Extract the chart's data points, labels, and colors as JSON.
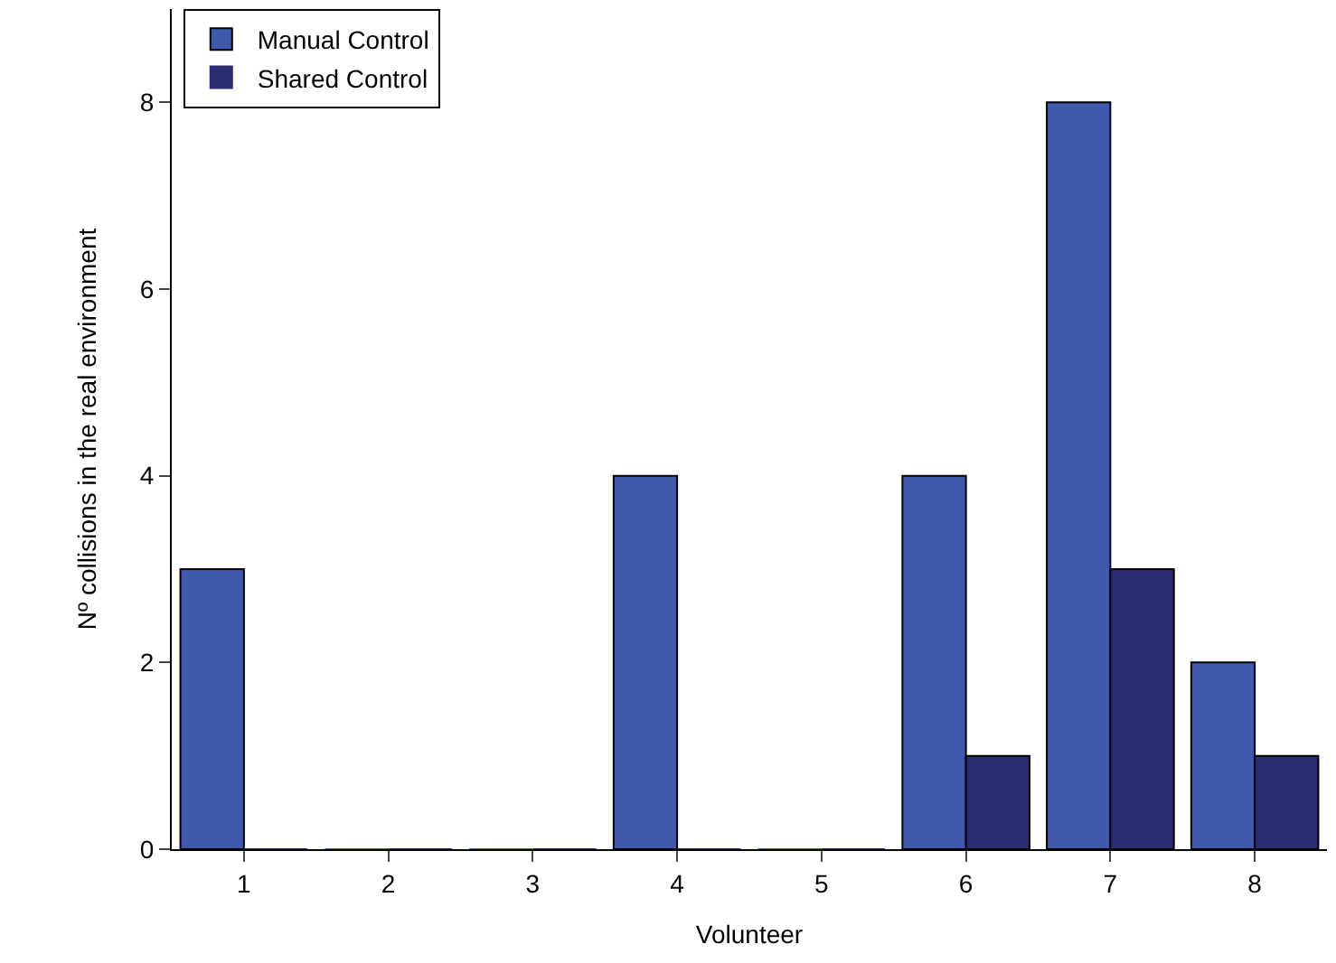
{
  "chart_data": {
    "type": "bar",
    "xlabel": "Volunteer",
    "ylabel": "Nº collisions in the real environment",
    "categories": [
      "1",
      "2",
      "3",
      "4",
      "5",
      "6",
      "7",
      "8"
    ],
    "series": [
      {
        "name": "Manual Control",
        "color": "#3f5aad",
        "values": [
          3,
          0,
          0,
          4,
          0,
          4,
          8,
          2
        ]
      },
      {
        "name": "Shared Control",
        "color": "#2a2d73",
        "values": [
          0,
          0,
          0,
          0,
          0,
          1,
          3,
          1
        ]
      }
    ],
    "ylim": [
      0,
      9
    ],
    "yticks": [
      0,
      2,
      4,
      6,
      8
    ],
    "grid": false,
    "legend": "top left"
  }
}
